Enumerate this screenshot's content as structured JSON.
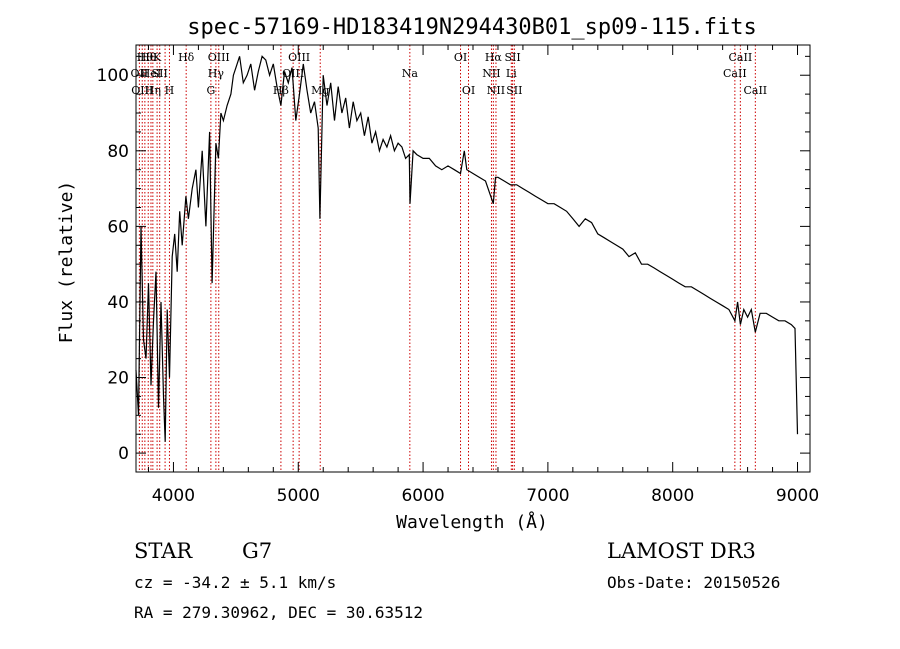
{
  "chart_data": {
    "type": "line",
    "title": "spec-57169-HD183419N294430B01_sp09-115.fits",
    "xlabel": "Wavelength (Å)",
    "ylabel": "Flux (relative)",
    "xlim": [
      3700,
      9100
    ],
    "ylim": [
      -5,
      108
    ],
    "xticks": [
      4000,
      5000,
      6000,
      7000,
      8000,
      9000
    ],
    "yticks": [
      0,
      20,
      40,
      60,
      80,
      100
    ],
    "grid": false,
    "series": [
      {
        "name": "spectrum",
        "x": [
          3700,
          3720,
          3740,
          3760,
          3780,
          3800,
          3820,
          3840,
          3860,
          3880,
          3900,
          3920,
          3934,
          3950,
          3968,
          3990,
          4010,
          4030,
          4050,
          4070,
          4100,
          4120,
          4150,
          4180,
          4200,
          4230,
          4260,
          4290,
          4310,
          4340,
          4360,
          4380,
          4400,
          4430,
          4460,
          4480,
          4500,
          4530,
          4560,
          4590,
          4620,
          4650,
          4680,
          4710,
          4740,
          4770,
          4800,
          4830,
          4861,
          4890,
          4920,
          4950,
          4980,
          5010,
          5040,
          5070,
          5100,
          5130,
          5160,
          5173,
          5200,
          5230,
          5260,
          5290,
          5320,
          5350,
          5380,
          5410,
          5440,
          5470,
          5500,
          5530,
          5560,
          5590,
          5620,
          5650,
          5680,
          5710,
          5740,
          5770,
          5800,
          5830,
          5860,
          5890,
          5895,
          5920,
          5950,
          6000,
          6050,
          6100,
          6150,
          6200,
          6250,
          6300,
          6330,
          6350,
          6400,
          6450,
          6500,
          6563,
          6580,
          6600,
          6650,
          6700,
          6750,
          6800,
          6850,
          6900,
          6950,
          7000,
          7050,
          7100,
          7150,
          7200,
          7250,
          7300,
          7350,
          7400,
          7450,
          7500,
          7550,
          7600,
          7650,
          7700,
          7750,
          7800,
          7850,
          7900,
          7950,
          8000,
          8050,
          8100,
          8150,
          8200,
          8250,
          8300,
          8350,
          8400,
          8450,
          8498,
          8520,
          8542,
          8570,
          8600,
          8630,
          8662,
          8700,
          8750,
          8800,
          8850,
          8900,
          8950,
          8980,
          9000
        ],
        "y": [
          22,
          10,
          60,
          30,
          25,
          45,
          18,
          35,
          48,
          12,
          40,
          15,
          3,
          38,
          20,
          52,
          58,
          48,
          64,
          55,
          68,
          62,
          70,
          75,
          65,
          80,
          60,
          85,
          45,
          82,
          78,
          90,
          88,
          92,
          95,
          100,
          102,
          105,
          98,
          100,
          103,
          96,
          101,
          105,
          104,
          100,
          103,
          97,
          92,
          101,
          98,
          102,
          88,
          95,
          103,
          96,
          90,
          93,
          86,
          62,
          100,
          92,
          98,
          88,
          97,
          90,
          94,
          86,
          93,
          88,
          90,
          84,
          89,
          82,
          85,
          80,
          83,
          81,
          84,
          80,
          82,
          81,
          78,
          79,
          66,
          80,
          79,
          78,
          78,
          76,
          75,
          76,
          75,
          74,
          80,
          75,
          74,
          73,
          72,
          66,
          73,
          73,
          72,
          71,
          71,
          70,
          69,
          68,
          67,
          66,
          66,
          65,
          64,
          62,
          60,
          62,
          61,
          58,
          57,
          56,
          55,
          54,
          52,
          53,
          50,
          50,
          49,
          48,
          47,
          46,
          45,
          44,
          44,
          43,
          42,
          41,
          40,
          39,
          38,
          35,
          40,
          34,
          38,
          36,
          38,
          32,
          37,
          37,
          36,
          35,
          35,
          34,
          33,
          5
        ]
      }
    ],
    "line_markers": [
      {
        "wavelength": 3727,
        "label": "OII",
        "row": 1
      },
      {
        "wavelength": 3750,
        "label": "OIII",
        "row": 2
      },
      {
        "wavelength": 3771,
        "label": "Hθ",
        "row": 0
      },
      {
        "wavelength": 3798,
        "label": "Hθ",
        "row": 0
      },
      {
        "wavelength": 3820,
        "label": "HeI",
        "row": 1
      },
      {
        "wavelength": 3835,
        "label": "Hη",
        "row": 2
      },
      {
        "wavelength": 3869,
        "label": "K",
        "row": 0
      },
      {
        "wavelength": 3890,
        "label": "SII",
        "row": 1
      },
      {
        "wavelength": 3933,
        "label": "",
        "row": 0
      },
      {
        "wavelength": 3968,
        "label": "H",
        "row": 2
      },
      {
        "wavelength": 4102,
        "label": "Hδ",
        "row": 0
      },
      {
        "wavelength": 4300,
        "label": "G",
        "row": 2
      },
      {
        "wavelength": 4340,
        "label": "Hγ",
        "row": 1
      },
      {
        "wavelength": 4363,
        "label": "OIII",
        "row": 0
      },
      {
        "wavelength": 4861,
        "label": "Hβ",
        "row": 2
      },
      {
        "wavelength": 4959,
        "label": "OIII",
        "row": 1
      },
      {
        "wavelength": 5007,
        "label": "OIII",
        "row": 0
      },
      {
        "wavelength": 5176,
        "label": "Mg",
        "row": 2
      },
      {
        "wavelength": 5894,
        "label": "Na",
        "row": 1
      },
      {
        "wavelength": 6300,
        "label": "OI",
        "row": 0
      },
      {
        "wavelength": 6364,
        "label": "OI",
        "row": 2
      },
      {
        "wavelength": 6548,
        "label": "NII",
        "row": 1
      },
      {
        "wavelength": 6563,
        "label": "Hα",
        "row": 0
      },
      {
        "wavelength": 6584,
        "label": "NII",
        "row": 2
      },
      {
        "wavelength": 6707,
        "label": "Li",
        "row": 1
      },
      {
        "wavelength": 6717,
        "label": "SII",
        "row": 0
      },
      {
        "wavelength": 6731,
        "label": "SII",
        "row": 2
      },
      {
        "wavelength": 8498,
        "label": "CaII",
        "row": 1
      },
      {
        "wavelength": 8542,
        "label": "CaII",
        "row": 0
      },
      {
        "wavelength": 8662,
        "label": "CaII",
        "row": 2
      }
    ]
  },
  "info": {
    "object_class": "STAR",
    "subclass": "G7",
    "survey": "LAMOST DR3",
    "cz": "cz = -34.2 ± 5.1 km/s",
    "obs_date": "Obs-Date: 20150526",
    "coords": "RA = 279.30962, DEC =  30.63512"
  },
  "colors": {
    "marker": "#cc0000",
    "spectrum": "#000000"
  }
}
